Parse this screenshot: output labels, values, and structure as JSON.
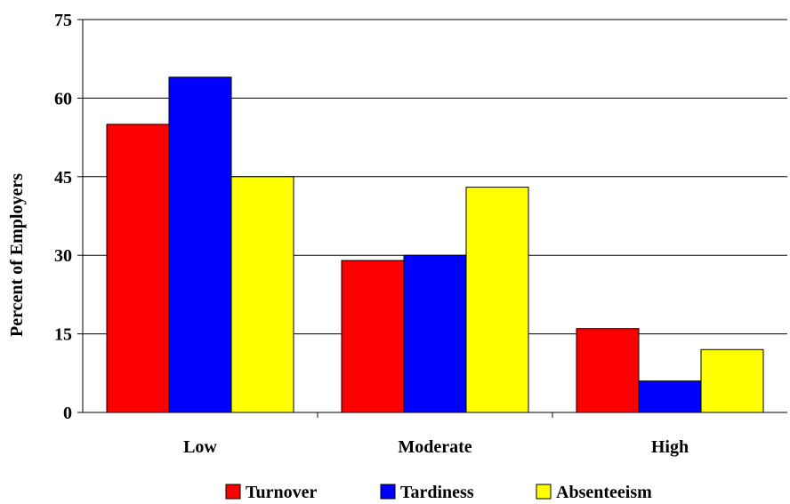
{
  "chart_data": {
    "type": "bar",
    "title": "",
    "xlabel": "",
    "ylabel": "Percent of Employers",
    "ylim": [
      0,
      75
    ],
    "yticks": [
      0,
      15,
      30,
      45,
      60,
      75
    ],
    "grid": true,
    "legend_position": "bottom",
    "categories": [
      "Low",
      "Moderate",
      "High"
    ],
    "series": [
      {
        "name": "Turnover",
        "color": "#ff0000",
        "values": [
          55,
          29,
          16
        ]
      },
      {
        "name": "Tardiness",
        "color": "#0000ff",
        "values": [
          64,
          30,
          6
        ]
      },
      {
        "name": "Absenteeism",
        "color": "#ffff00",
        "values": [
          45,
          43,
          12
        ]
      }
    ]
  }
}
